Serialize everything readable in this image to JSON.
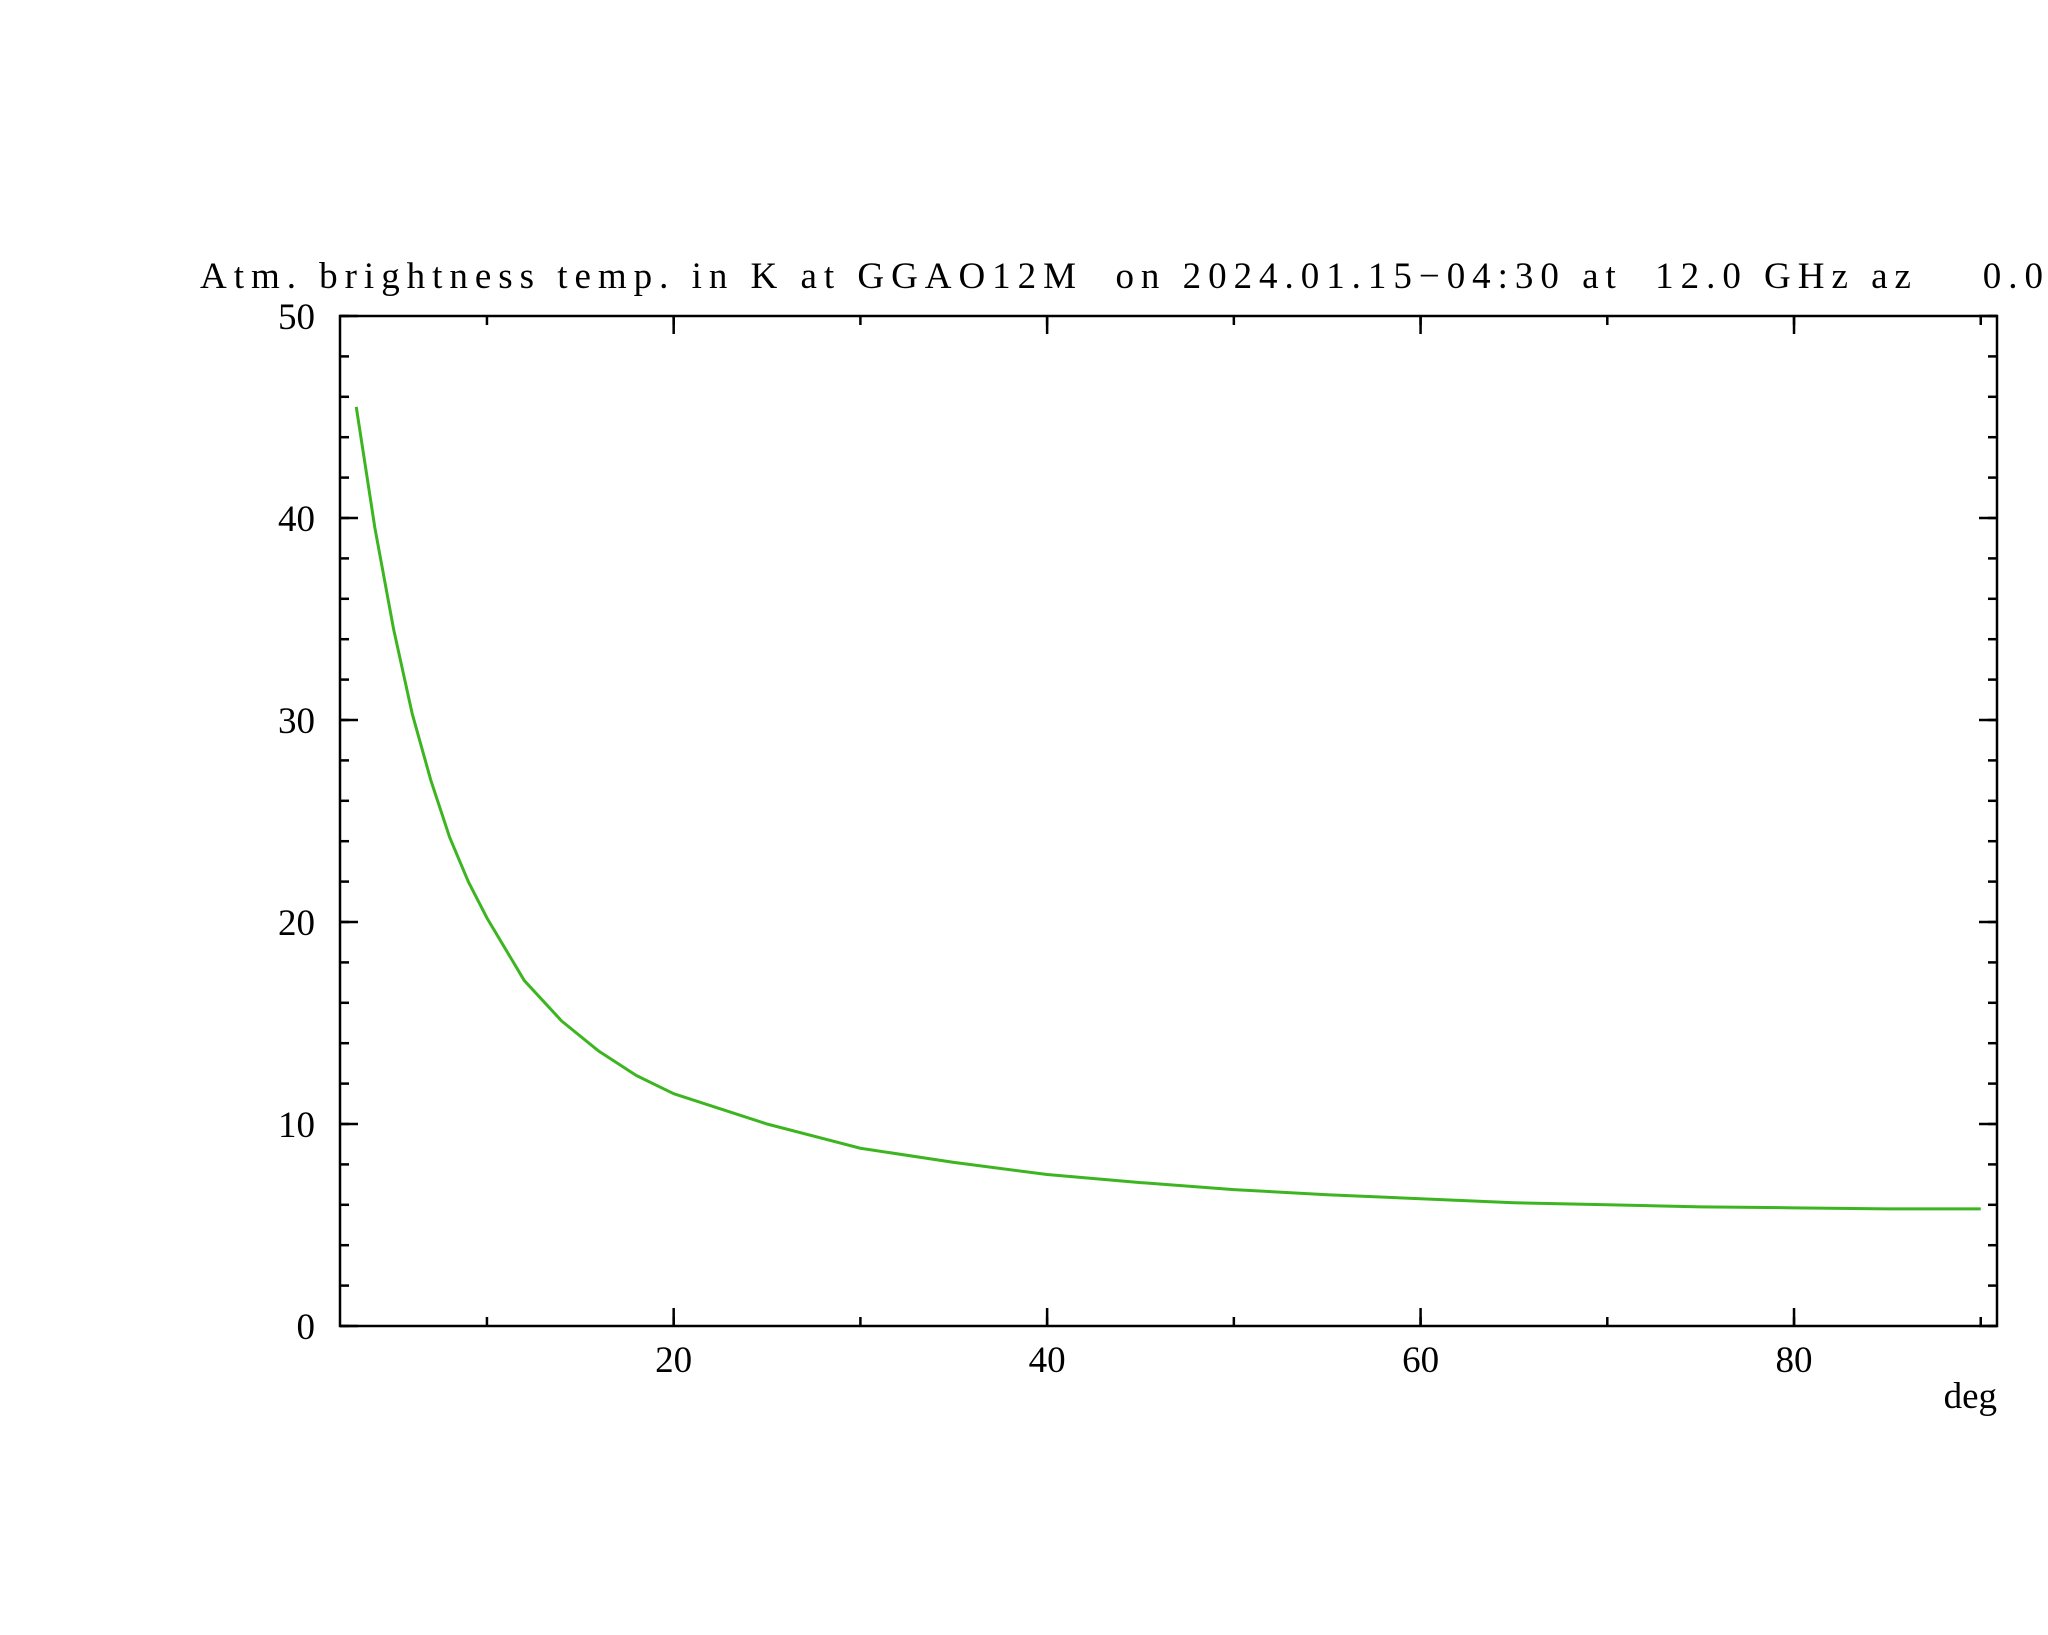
{
  "chart_data": {
    "type": "line",
    "title": "Atm. brightness temp. in K at GGAO12M  on 2024.01.15−04:30 at  12.0 GHz az    0.0",
    "x_label": "deg",
    "x": [
      3,
      4,
      5,
      6,
      7,
      8,
      9,
      10,
      12,
      14,
      16,
      18,
      20,
      25,
      30,
      35,
      40,
      45,
      50,
      55,
      60,
      65,
      70,
      75,
      80,
      85,
      90
    ],
    "series": [
      {
        "color": "#3cb521",
        "values": [
          45.5,
          39.5,
          34.5,
          30.3,
          27,
          24.2,
          22,
          20.2,
          17.1,
          15.1,
          13.6,
          12.4,
          11.5,
          10.0,
          8.8,
          8.1,
          7.5,
          7.1,
          6.75,
          6.5,
          6.3,
          6.1,
          6.0,
          5.9,
          5.85,
          5.8,
          5.8
        ]
      }
    ],
    "xlim": [
      2.13,
      90.87
    ],
    "xticks": [
      20,
      40,
      60,
      80
    ],
    "ylim": [
      0,
      50
    ],
    "yticks": [
      0,
      10,
      20,
      30,
      40,
      50
    ],
    "x_minor_step": 10,
    "y_minor_step": 2
  }
}
